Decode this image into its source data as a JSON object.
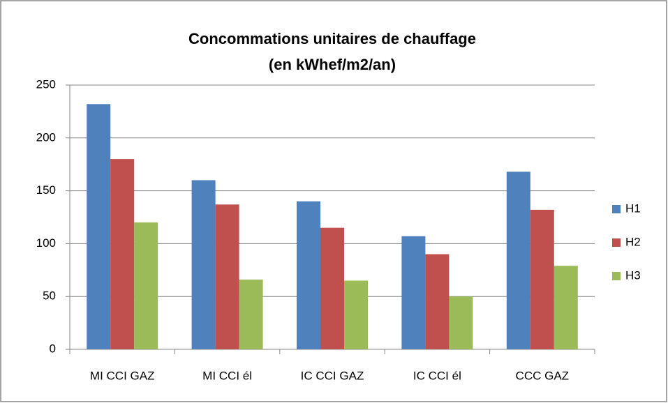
{
  "chart_data": {
    "type": "bar",
    "title": "Concommations unitaires de chauffage",
    "subtitle": "(en kWhef/m2/an)",
    "categories": [
      "MI CCI GAZ",
      "MI CCI él",
      "IC CCI GAZ",
      "IC CCI él",
      "CCC GAZ"
    ],
    "series": [
      {
        "name": "H1",
        "color": "#4f81bd",
        "values": [
          232,
          160,
          140,
          107,
          168
        ]
      },
      {
        "name": "H2",
        "color": "#c0504d",
        "values": [
          180,
          137,
          115,
          90,
          132
        ]
      },
      {
        "name": "H3",
        "color": "#9bbb59",
        "values": [
          120,
          66,
          65,
          50,
          79
        ]
      }
    ],
    "ylim": [
      0,
      250
    ],
    "yticks": [
      0,
      50,
      100,
      150,
      200,
      250
    ],
    "grid": true,
    "legend": "right"
  }
}
